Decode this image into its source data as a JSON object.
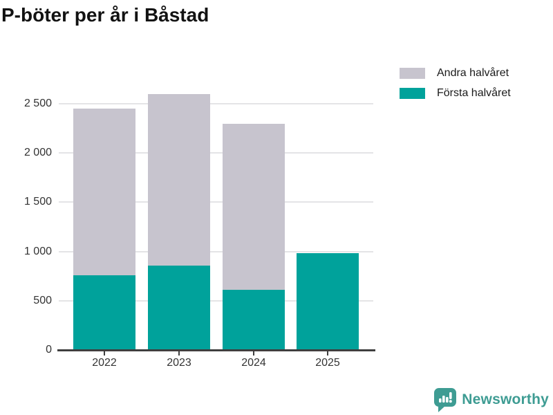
{
  "title": "P-böter per år i Båstad",
  "legend": [
    {
      "label": "Andra halvåret",
      "color": "#c7c4ce"
    },
    {
      "label": "Första halvåret",
      "color": "#00a29b"
    }
  ],
  "footer": {
    "brand": "Newsworthy",
    "brand_color": "#3e9c93",
    "logo_icon": "bar-chart-speech-bubble-icon"
  },
  "chart_data": {
    "type": "bar",
    "stacked": true,
    "title": "P-böter per år i Båstad",
    "categories": [
      "2022",
      "2023",
      "2024",
      "2025"
    ],
    "series": [
      {
        "name": "Första halvåret",
        "color": "#00a29b",
        "values": [
          760,
          860,
          610,
          980
        ]
      },
      {
        "name": "Andra halvåret",
        "color": "#c7c4ce",
        "values": [
          1690,
          1740,
          1690,
          0
        ]
      }
    ],
    "totals": [
      2450,
      2600,
      2300,
      980
    ],
    "xlabel": "",
    "ylabel": "",
    "ylim": [
      0,
      2500
    ],
    "yticks": [
      0,
      500,
      1000,
      1500,
      2000,
      2500
    ],
    "ytick_labels": [
      "0",
      "500",
      "1 000",
      "1 500",
      "2 000",
      "2 500"
    ],
    "grid": "horizontal",
    "legend_position": "top-right",
    "colors": {
      "grid": "#e4e4e6",
      "axis": "#3f3f3f",
      "tick_text": "#333333",
      "background": "#ffffff"
    }
  }
}
